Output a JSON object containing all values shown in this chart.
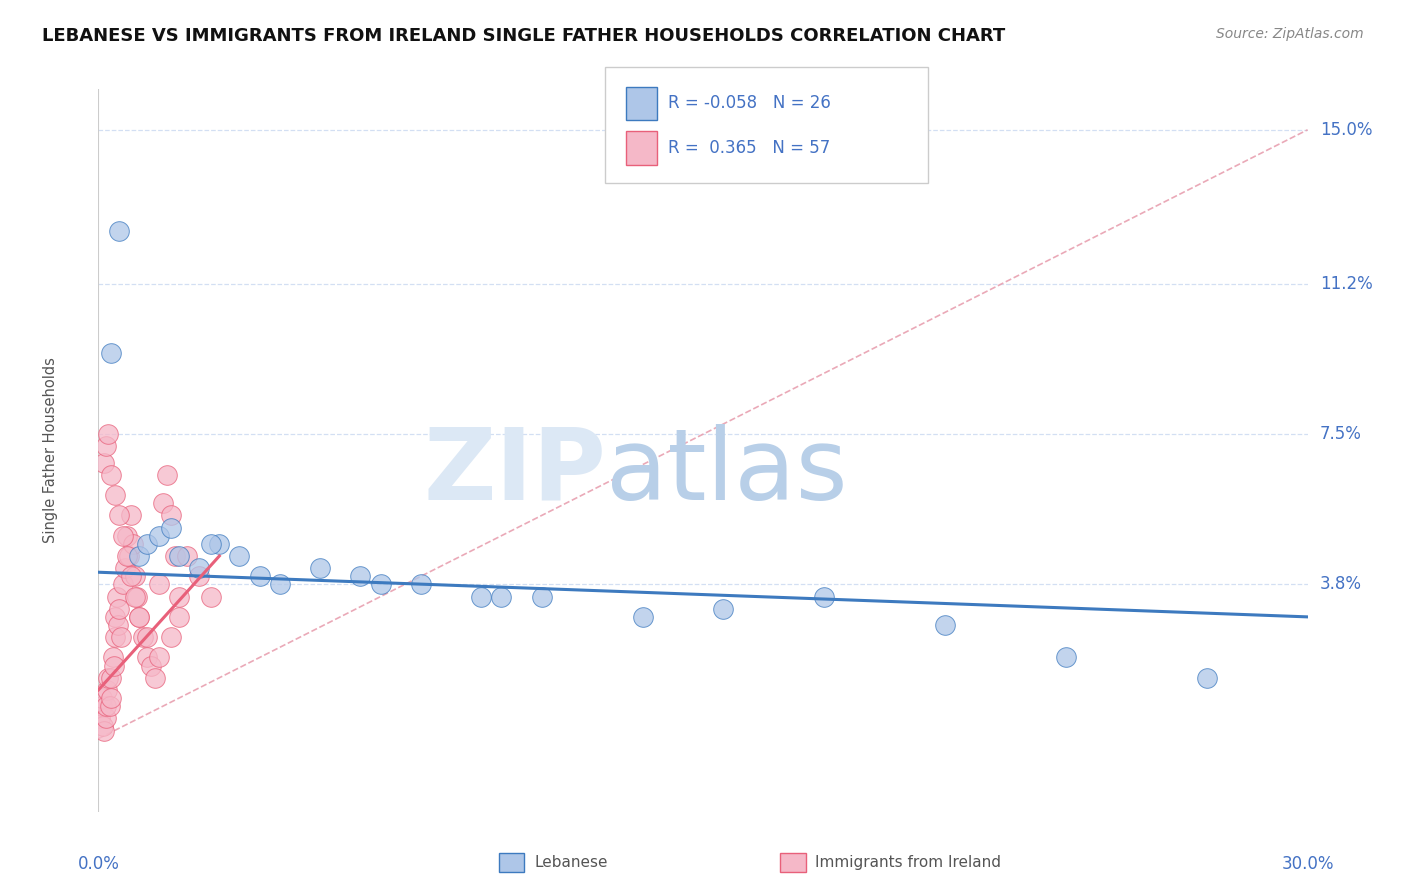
{
  "title": "LEBANESE VS IMMIGRANTS FROM IRELAND SINGLE FATHER HOUSEHOLDS CORRELATION CHART",
  "source": "Source: ZipAtlas.com",
  "legend_label1": "Lebanese",
  "legend_label2": "Immigrants from Ireland",
  "r1": "-0.058",
  "n1": "26",
  "r2": "0.365",
  "n2": "57",
  "color_blue": "#aec6e8",
  "color_pink": "#f5b8c8",
  "color_blue_dark": "#3d7abf",
  "color_pink_dark": "#e8607a",
  "color_text_blue": "#4472c4",
  "color_axis": "#4472c4",
  "color_grid": "#c8d8f0",
  "color_refline": "#e8a0b0",
  "watermark_zip_color": "#d8e4f0",
  "watermark_atlas_color": "#b8cce4",
  "xmin": 0.0,
  "xmax": 30.0,
  "ymin": -1.8,
  "ymax": 16.0,
  "ytick_vals": [
    3.8,
    7.5,
    11.2,
    15.0
  ],
  "ytick_labels": [
    "3.8%",
    "7.5%",
    "11.2%",
    "15.0%"
  ],
  "blue_x": [
    0.3,
    0.5,
    1.0,
    1.2,
    1.5,
    2.0,
    2.5,
    3.0,
    3.5,
    4.5,
    5.5,
    7.0,
    9.5,
    11.0,
    13.5,
    15.5,
    18.0,
    21.0,
    24.0,
    27.5,
    1.8,
    2.8,
    4.0,
    6.5,
    8.0,
    10.0
  ],
  "blue_y": [
    9.5,
    12.5,
    4.5,
    4.8,
    5.0,
    4.5,
    4.2,
    4.8,
    4.5,
    3.8,
    4.2,
    3.8,
    3.5,
    3.5,
    3.0,
    3.2,
    3.5,
    2.8,
    2.0,
    1.5,
    5.2,
    4.8,
    4.0,
    4.0,
    3.8,
    3.5
  ],
  "pink_x": [
    0.05,
    0.08,
    0.1,
    0.12,
    0.15,
    0.18,
    0.2,
    0.22,
    0.25,
    0.28,
    0.3,
    0.32,
    0.35,
    0.38,
    0.4,
    0.42,
    0.45,
    0.48,
    0.5,
    0.55,
    0.6,
    0.65,
    0.7,
    0.75,
    0.8,
    0.85,
    0.9,
    0.95,
    1.0,
    1.1,
    1.2,
    1.3,
    1.4,
    1.5,
    1.6,
    1.7,
    1.8,
    1.9,
    2.0,
    2.2,
    2.5,
    2.8,
    0.15,
    0.2,
    0.25,
    0.3,
    0.4,
    0.5,
    0.6,
    0.7,
    0.8,
    0.9,
    1.0,
    1.2,
    1.5,
    1.8,
    2.0
  ],
  "pink_y": [
    0.5,
    0.8,
    1.0,
    0.3,
    0.2,
    0.5,
    0.8,
    1.2,
    1.5,
    0.8,
    1.0,
    1.5,
    2.0,
    1.8,
    2.5,
    3.0,
    3.5,
    2.8,
    3.2,
    2.5,
    3.8,
    4.2,
    5.0,
    4.5,
    5.5,
    4.8,
    4.0,
    3.5,
    3.0,
    2.5,
    2.0,
    1.8,
    1.5,
    3.8,
    5.8,
    6.5,
    5.5,
    4.5,
    3.5,
    4.5,
    4.0,
    3.5,
    6.8,
    7.2,
    7.5,
    6.5,
    6.0,
    5.5,
    5.0,
    4.5,
    4.0,
    3.5,
    3.0,
    2.5,
    2.0,
    2.5,
    3.0
  ],
  "blue_trend_x": [
    0.0,
    30.0
  ],
  "blue_trend_y": [
    4.1,
    3.0
  ],
  "pink_trend_x": [
    0.0,
    3.0
  ],
  "pink_trend_y": [
    1.2,
    4.5
  ]
}
